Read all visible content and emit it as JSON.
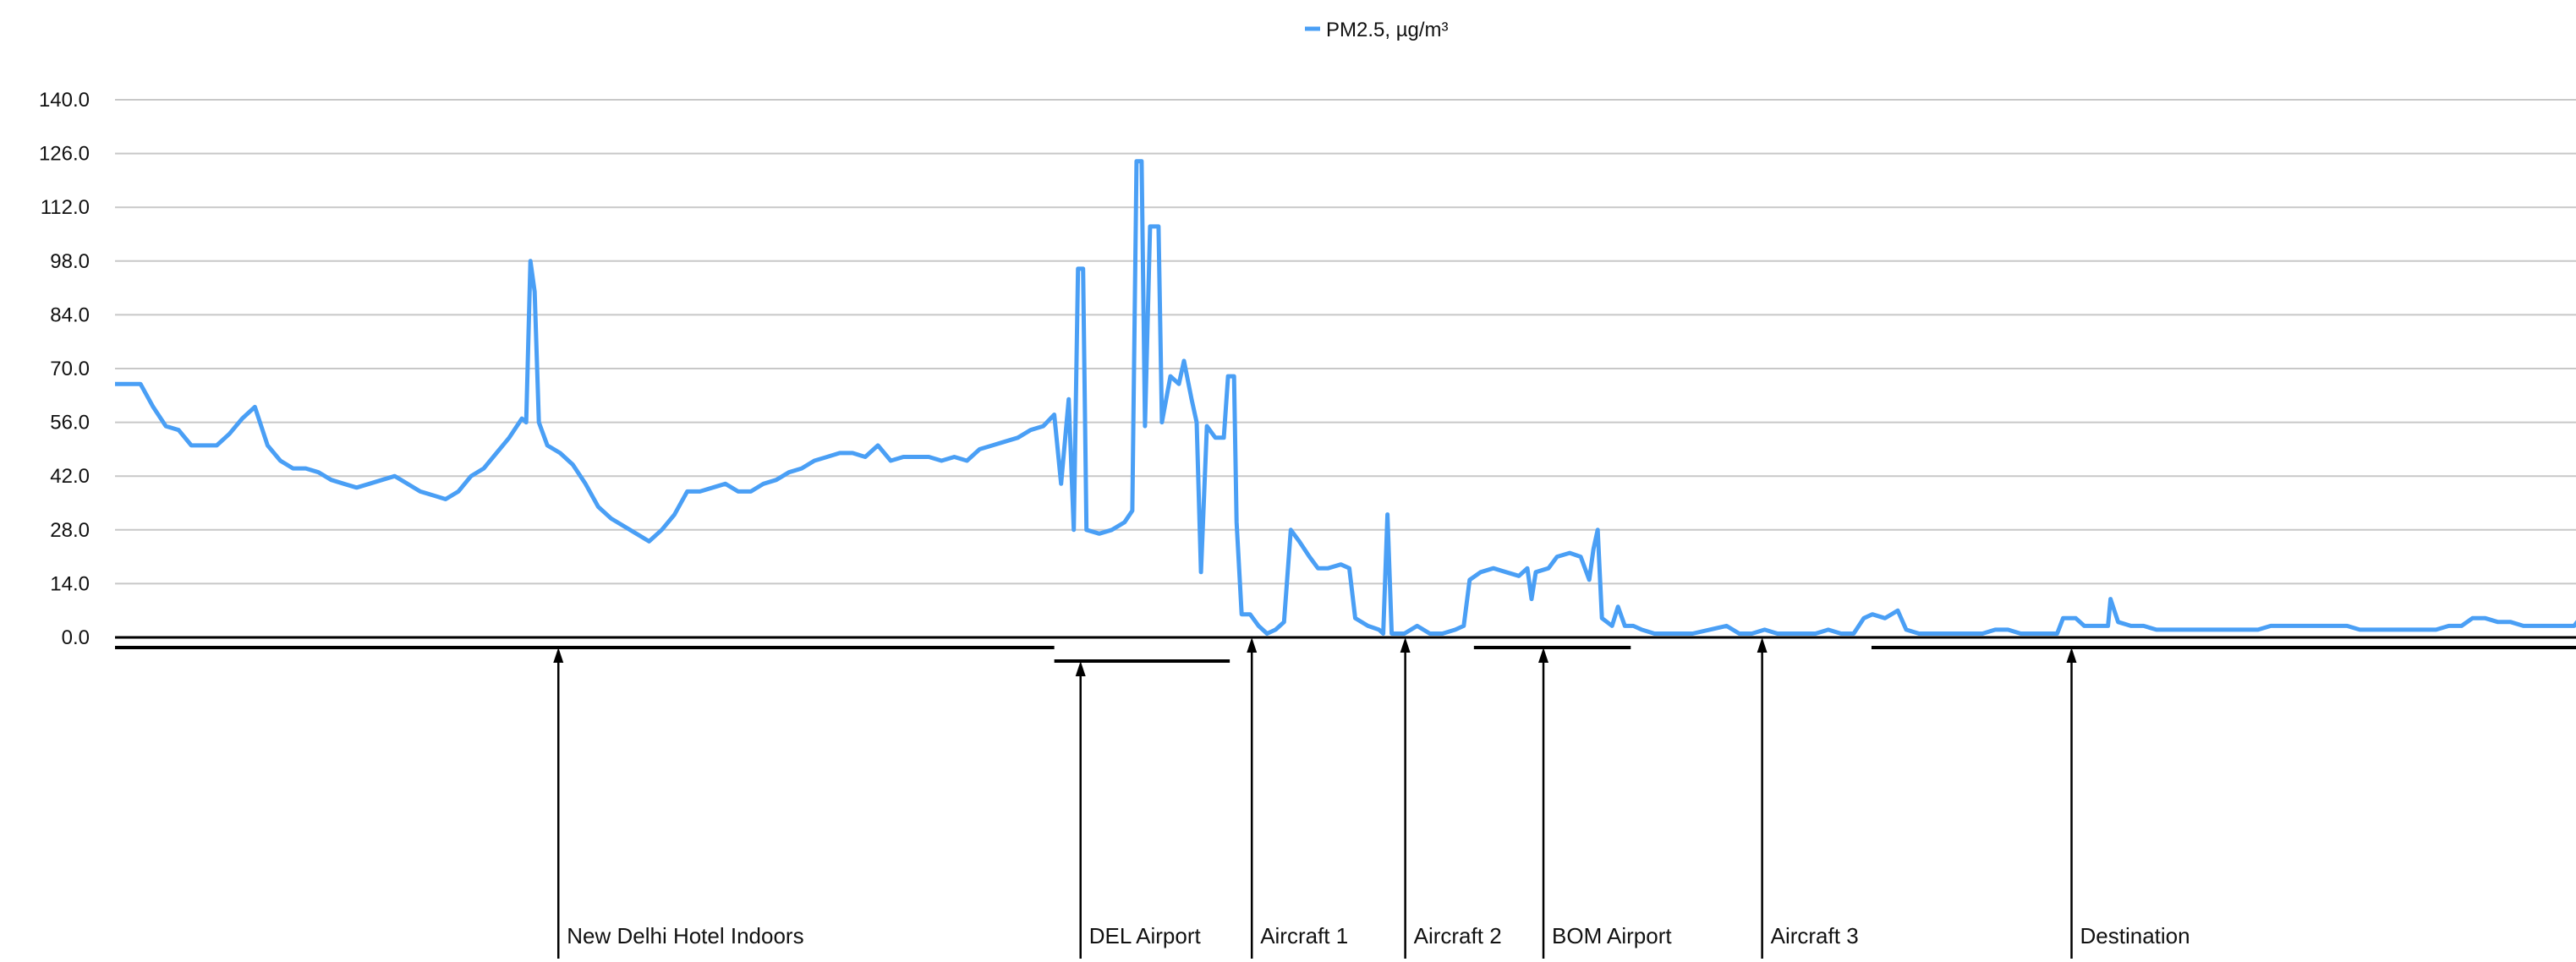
{
  "chart_data": {
    "type": "line",
    "title": "",
    "xlabel": "",
    "ylabel": "",
    "ylim": [
      0,
      140
    ],
    "xlim": [
      137,
      3068
    ],
    "y_ticks": [
      "0.0",
      "14.0",
      "28.0",
      "42.0",
      "56.0",
      "70.0",
      "84.0",
      "98.0",
      "112.0",
      "126.0",
      "140.0"
    ],
    "grid": true,
    "legend_placement": "top-center",
    "series": [
      {
        "name": "PM2.5, µg/m³",
        "color": "#4a9ff5",
        "points": [
          [
            137,
            66
          ],
          [
            152,
            66
          ],
          [
            167,
            66
          ],
          [
            182,
            60
          ],
          [
            197,
            55
          ],
          [
            212,
            54
          ],
          [
            227,
            50
          ],
          [
            242,
            50
          ],
          [
            257,
            50
          ],
          [
            272,
            53
          ],
          [
            287,
            57
          ],
          [
            302,
            60
          ],
          [
            317,
            50
          ],
          [
            332,
            46
          ],
          [
            347,
            44
          ],
          [
            362,
            44
          ],
          [
            377,
            43
          ],
          [
            392,
            41
          ],
          [
            407,
            40
          ],
          [
            422,
            39
          ],
          [
            437,
            40
          ],
          [
            452,
            41
          ],
          [
            467,
            42
          ],
          [
            482,
            40
          ],
          [
            497,
            38
          ],
          [
            512,
            37
          ],
          [
            527,
            36
          ],
          [
            542,
            38
          ],
          [
            557,
            42
          ],
          [
            572,
            44
          ],
          [
            587,
            48
          ],
          [
            602,
            52
          ],
          [
            617,
            57
          ],
          [
            622,
            56
          ],
          [
            627,
            98
          ],
          [
            632,
            90
          ],
          [
            637,
            56
          ],
          [
            647,
            50
          ],
          [
            662,
            48
          ],
          [
            677,
            45
          ],
          [
            692,
            40
          ],
          [
            707,
            34
          ],
          [
            722,
            31
          ],
          [
            737,
            29
          ],
          [
            752,
            27
          ],
          [
            767,
            25
          ],
          [
            782,
            28
          ],
          [
            797,
            32
          ],
          [
            812,
            38
          ],
          [
            827,
            38
          ],
          [
            842,
            39
          ],
          [
            857,
            40
          ],
          [
            872,
            38
          ],
          [
            887,
            38
          ],
          [
            902,
            40
          ],
          [
            917,
            41
          ],
          [
            932,
            43
          ],
          [
            947,
            44
          ],
          [
            962,
            46
          ],
          [
            977,
            47
          ],
          [
            992,
            48
          ],
          [
            1007,
            48
          ],
          [
            1022,
            47
          ],
          [
            1037,
            50
          ],
          [
            1052,
            46
          ],
          [
            1067,
            47
          ],
          [
            1082,
            47
          ],
          [
            1097,
            47
          ],
          [
            1112,
            46
          ],
          [
            1127,
            47
          ],
          [
            1142,
            46
          ],
          [
            1157,
            49
          ],
          [
            1172,
            50
          ],
          [
            1187,
            51
          ],
          [
            1202,
            52
          ],
          [
            1217,
            54
          ],
          [
            1232,
            55
          ],
          [
            1245,
            58
          ],
          [
            1253,
            40
          ],
          [
            1262,
            62
          ],
          [
            1268,
            28
          ],
          [
            1273,
            96
          ],
          [
            1279,
            96
          ],
          [
            1283,
            28
          ],
          [
            1298,
            27
          ],
          [
            1313,
            28
          ],
          [
            1328,
            30
          ],
          [
            1337,
            33
          ],
          [
            1342,
            124
          ],
          [
            1348,
            124
          ],
          [
            1352,
            55
          ],
          [
            1358,
            107
          ],
          [
            1368,
            107
          ],
          [
            1372,
            56
          ],
          [
            1382,
            68
          ],
          [
            1392,
            66
          ],
          [
            1398,
            72
          ],
          [
            1407,
            62
          ],
          [
            1413,
            56
          ],
          [
            1418,
            17
          ],
          [
            1425,
            55
          ],
          [
            1435,
            52
          ],
          [
            1445,
            52
          ],
          [
            1450,
            68
          ],
          [
            1457,
            68
          ],
          [
            1460,
            30
          ],
          [
            1466,
            6
          ],
          [
            1476,
            6
          ],
          [
            1486,
            3
          ],
          [
            1496,
            1
          ],
          [
            1506,
            2
          ],
          [
            1516,
            4
          ],
          [
            1524,
            28
          ],
          [
            1534,
            25
          ],
          [
            1546,
            21
          ],
          [
            1556,
            18
          ],
          [
            1568,
            18
          ],
          [
            1583,
            19
          ],
          [
            1593,
            18
          ],
          [
            1600,
            5
          ],
          [
            1615,
            3
          ],
          [
            1628,
            2
          ],
          [
            1633,
            1
          ],
          [
            1638,
            32
          ],
          [
            1643,
            1
          ],
          [
            1658,
            1
          ],
          [
            1673,
            3
          ],
          [
            1688,
            1
          ],
          [
            1703,
            1
          ],
          [
            1718,
            2
          ],
          [
            1728,
            3
          ],
          [
            1735,
            15
          ],
          [
            1748,
            17
          ],
          [
            1763,
            18
          ],
          [
            1778,
            17
          ],
          [
            1793,
            16
          ],
          [
            1803,
            18
          ],
          [
            1808,
            10
          ],
          [
            1813,
            17
          ],
          [
            1828,
            18
          ],
          [
            1838,
            21
          ],
          [
            1853,
            22
          ],
          [
            1866,
            21
          ],
          [
            1876,
            15
          ],
          [
            1881,
            23
          ],
          [
            1886,
            28
          ],
          [
            1891,
            5
          ],
          [
            1903,
            3
          ],
          [
            1910,
            8
          ],
          [
            1918,
            3
          ],
          [
            1928,
            3
          ],
          [
            1938,
            2
          ],
          [
            1953,
            1
          ],
          [
            1968,
            1
          ],
          [
            1983,
            1
          ],
          [
            1998,
            1
          ],
          [
            2018,
            2
          ],
          [
            2038,
            3
          ],
          [
            2053,
            1
          ],
          [
            2068,
            1
          ],
          [
            2083,
            2
          ],
          [
            2098,
            1
          ],
          [
            2113,
            1
          ],
          [
            2128,
            1
          ],
          [
            2143,
            1
          ],
          [
            2158,
            2
          ],
          [
            2173,
            1
          ],
          [
            2188,
            1
          ],
          [
            2200,
            5
          ],
          [
            2210,
            6
          ],
          [
            2225,
            5
          ],
          [
            2240,
            7
          ],
          [
            2250,
            2
          ],
          [
            2265,
            1
          ],
          [
            2280,
            1
          ],
          [
            2295,
            1
          ],
          [
            2310,
            1
          ],
          [
            2325,
            1
          ],
          [
            2340,
            1
          ],
          [
            2355,
            2
          ],
          [
            2370,
            2
          ],
          [
            2385,
            1
          ],
          [
            2400,
            1
          ],
          [
            2415,
            1
          ],
          [
            2428,
            1
          ],
          [
            2435,
            5
          ],
          [
            2450,
            5
          ],
          [
            2460,
            3
          ],
          [
            2475,
            3
          ],
          [
            2488,
            3
          ],
          [
            2491,
            10
          ],
          [
            2500,
            4
          ],
          [
            2515,
            3
          ],
          [
            2530,
            3
          ],
          [
            2545,
            2
          ],
          [
            2560,
            2
          ],
          [
            2575,
            2
          ],
          [
            2590,
            2
          ],
          [
            2605,
            2
          ],
          [
            2620,
            2
          ],
          [
            2635,
            2
          ],
          [
            2650,
            2
          ],
          [
            2665,
            2
          ],
          [
            2680,
            3
          ],
          [
            2695,
            3
          ],
          [
            2710,
            3
          ],
          [
            2725,
            3
          ],
          [
            2740,
            3
          ],
          [
            2755,
            3
          ],
          [
            2770,
            3
          ],
          [
            2785,
            2
          ],
          [
            2800,
            2
          ],
          [
            2815,
            2
          ],
          [
            2830,
            2
          ],
          [
            2845,
            2
          ],
          [
            2860,
            2
          ],
          [
            2875,
            2
          ],
          [
            2890,
            3
          ],
          [
            2905,
            3
          ],
          [
            2918,
            5
          ],
          [
            2933,
            5
          ],
          [
            2948,
            4
          ],
          [
            2963,
            4
          ],
          [
            2978,
            3
          ],
          [
            2993,
            3
          ],
          [
            3008,
            3
          ],
          [
            3023,
            3
          ],
          [
            3038,
            3
          ],
          [
            3048,
            6
          ],
          [
            3058,
            9
          ],
          [
            3063,
            12
          ],
          [
            3068,
            11
          ]
        ]
      }
    ],
    "annotations": [
      {
        "label": "New Delhi Hotel Indoors",
        "span": [
          137,
          1245
        ],
        "marker": 660
      },
      {
        "label": "DEL Airport",
        "span": [
          1245,
          1452
        ],
        "marker": 1276
      },
      {
        "label": "Aircraft 1",
        "marker": 1478
      },
      {
        "label": "Aircraft 2",
        "marker": 1659
      },
      {
        "label": "BOM Airport",
        "span": [
          1740,
          1925
        ],
        "marker": 1822
      },
      {
        "label": "Aircraft 3",
        "marker": 2080
      },
      {
        "label": "Destination",
        "span": [
          2209,
          3068
        ],
        "marker": 2445
      }
    ]
  }
}
